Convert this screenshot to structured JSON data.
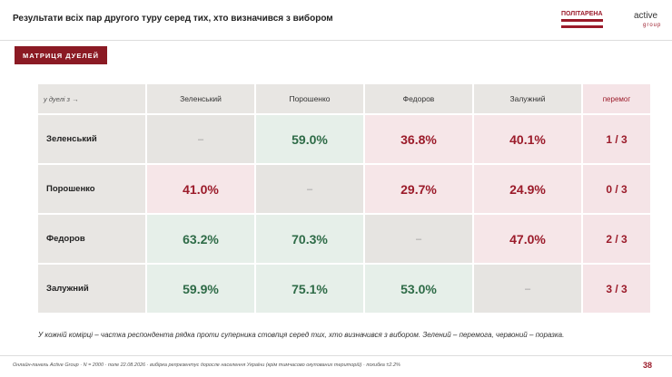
{
  "header": {
    "title": "Результати всіх пар другого туру серед тих, хто визначився з вибором",
    "logo_left": "ПОЛІТАРЕНА",
    "logo_right": "active",
    "logo_right_sub": "group"
  },
  "button": "МАТРИЦЯ ДУЕЛЕЙ",
  "table": {
    "corner": "у дуелі з →",
    "columns": [
      "Зеленський",
      "Порошенко",
      "Федоров",
      "Залужний",
      "перемог"
    ],
    "rows": [
      {
        "name": "Зеленський",
        "cells": [
          "–",
          "59.0%",
          "36.8%",
          "40.1%",
          "1 / 3"
        ]
      },
      {
        "name": "Порошенко",
        "cells": [
          "41.0%",
          "–",
          "29.7%",
          "24.9%",
          "0 / 3"
        ]
      },
      {
        "name": "Федоров",
        "cells": [
          "63.2%",
          "70.3%",
          "–",
          "47.0%",
          "2 / 3"
        ]
      },
      {
        "name": "Залужний",
        "cells": [
          "59.9%",
          "75.1%",
          "53.0%",
          "–",
          "3 / 3"
        ]
      }
    ]
  },
  "note": "У кожній комірці – частка респондента рядка проти суперника стовпця серед тих, хто визначився з вибором. Зелений – перемога, червоний – поразка.",
  "footer": {
    "source": "Онлайн-панель Active Group · N = 2000 · поле 22.08.2026 · вибірка репрезентує доросле населення України (крім тимчасово окупованих територій) · похибка ±2.2%",
    "page": "38"
  }
}
